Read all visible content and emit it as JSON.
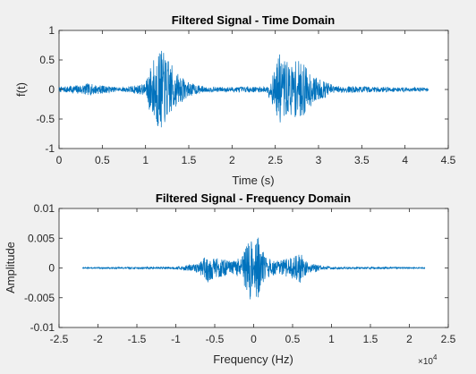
{
  "chart_data": [
    {
      "type": "line",
      "title": "Filtered Signal - Time Domain",
      "xlabel": "Time (s)",
      "ylabel": "f(t)",
      "xlim": [
        0,
        4.5
      ],
      "ylim": [
        -1,
        1
      ],
      "xticks": [
        "0",
        "0.5",
        "1",
        "1.5",
        "2",
        "2.5",
        "3",
        "3.5",
        "4",
        "4.5"
      ],
      "yticks": [
        "1",
        "0.5",
        "0",
        "-0.5",
        "-1"
      ],
      "grid": false,
      "color": "#0072BD",
      "signal_x_range": [
        0,
        4.27
      ],
      "envelope": [
        {
          "x": 0.0,
          "amp": 0.04
        },
        {
          "x": 0.34,
          "amp": 0.1
        },
        {
          "x": 0.7,
          "amp": 0.03
        },
        {
          "x": 1.0,
          "amp": 0.1
        },
        {
          "x": 1.05,
          "amp": 0.4
        },
        {
          "x": 1.15,
          "amp": 0.72
        },
        {
          "x": 1.25,
          "amp": 0.55
        },
        {
          "x": 1.35,
          "amp": 0.3
        },
        {
          "x": 1.5,
          "amp": 0.12
        },
        {
          "x": 1.7,
          "amp": 0.04
        },
        {
          "x": 2.4,
          "amp": 0.05
        },
        {
          "x": 2.5,
          "amp": 0.35
        },
        {
          "x": 2.55,
          "amp": 0.62
        },
        {
          "x": 2.65,
          "amp": 0.45
        },
        {
          "x": 2.8,
          "amp": 0.5
        },
        {
          "x": 2.95,
          "amp": 0.22
        },
        {
          "x": 3.2,
          "amp": 0.06
        },
        {
          "x": 3.6,
          "amp": 0.05
        },
        {
          "x": 4.0,
          "amp": 0.04
        },
        {
          "x": 4.27,
          "amp": 0.03
        }
      ]
    },
    {
      "type": "line",
      "title": "Filtered Signal - Frequency Domain",
      "xlabel": "Frequency (Hz)",
      "ylabel": "Amplitude",
      "xlim": [
        -25000,
        25000
      ],
      "ylim": [
        -0.01,
        0.01
      ],
      "xticks": [
        "-2.5",
        "-2",
        "-1.5",
        "-1",
        "-0.5",
        "0",
        "0.5",
        "1",
        "1.5",
        "2",
        "2.5"
      ],
      "yticks": [
        "0.01",
        "0.005",
        "0",
        "-0.005",
        "-0.01"
      ],
      "x_multiplier": "×10",
      "x_exponent": "4",
      "grid": false,
      "color": "#0072BD",
      "signal_x_range": [
        -22000,
        22000
      ],
      "envelope": [
        {
          "x": -22000,
          "amp": 0.0001
        },
        {
          "x": -10000,
          "amp": 0.0002
        },
        {
          "x": -7000,
          "amp": 0.0008
        },
        {
          "x": -6000,
          "amp": 0.0025
        },
        {
          "x": -5000,
          "amp": 0.0018
        },
        {
          "x": -3000,
          "amp": 0.0012
        },
        {
          "x": -1500,
          "amp": 0.0018
        },
        {
          "x": -800,
          "amp": 0.0045
        },
        {
          "x": -300,
          "amp": 0.0065
        },
        {
          "x": 0,
          "amp": 0.0005
        },
        {
          "x": 300,
          "amp": 0.0065
        },
        {
          "x": 800,
          "amp": 0.0045
        },
        {
          "x": 1500,
          "amp": 0.0018
        },
        {
          "x": 3000,
          "amp": 0.0012
        },
        {
          "x": 5000,
          "amp": 0.0018
        },
        {
          "x": 6000,
          "amp": 0.0025
        },
        {
          "x": 7000,
          "amp": 0.0008
        },
        {
          "x": 10000,
          "amp": 0.0002
        },
        {
          "x": 22000,
          "amp": 0.0001
        }
      ]
    }
  ]
}
